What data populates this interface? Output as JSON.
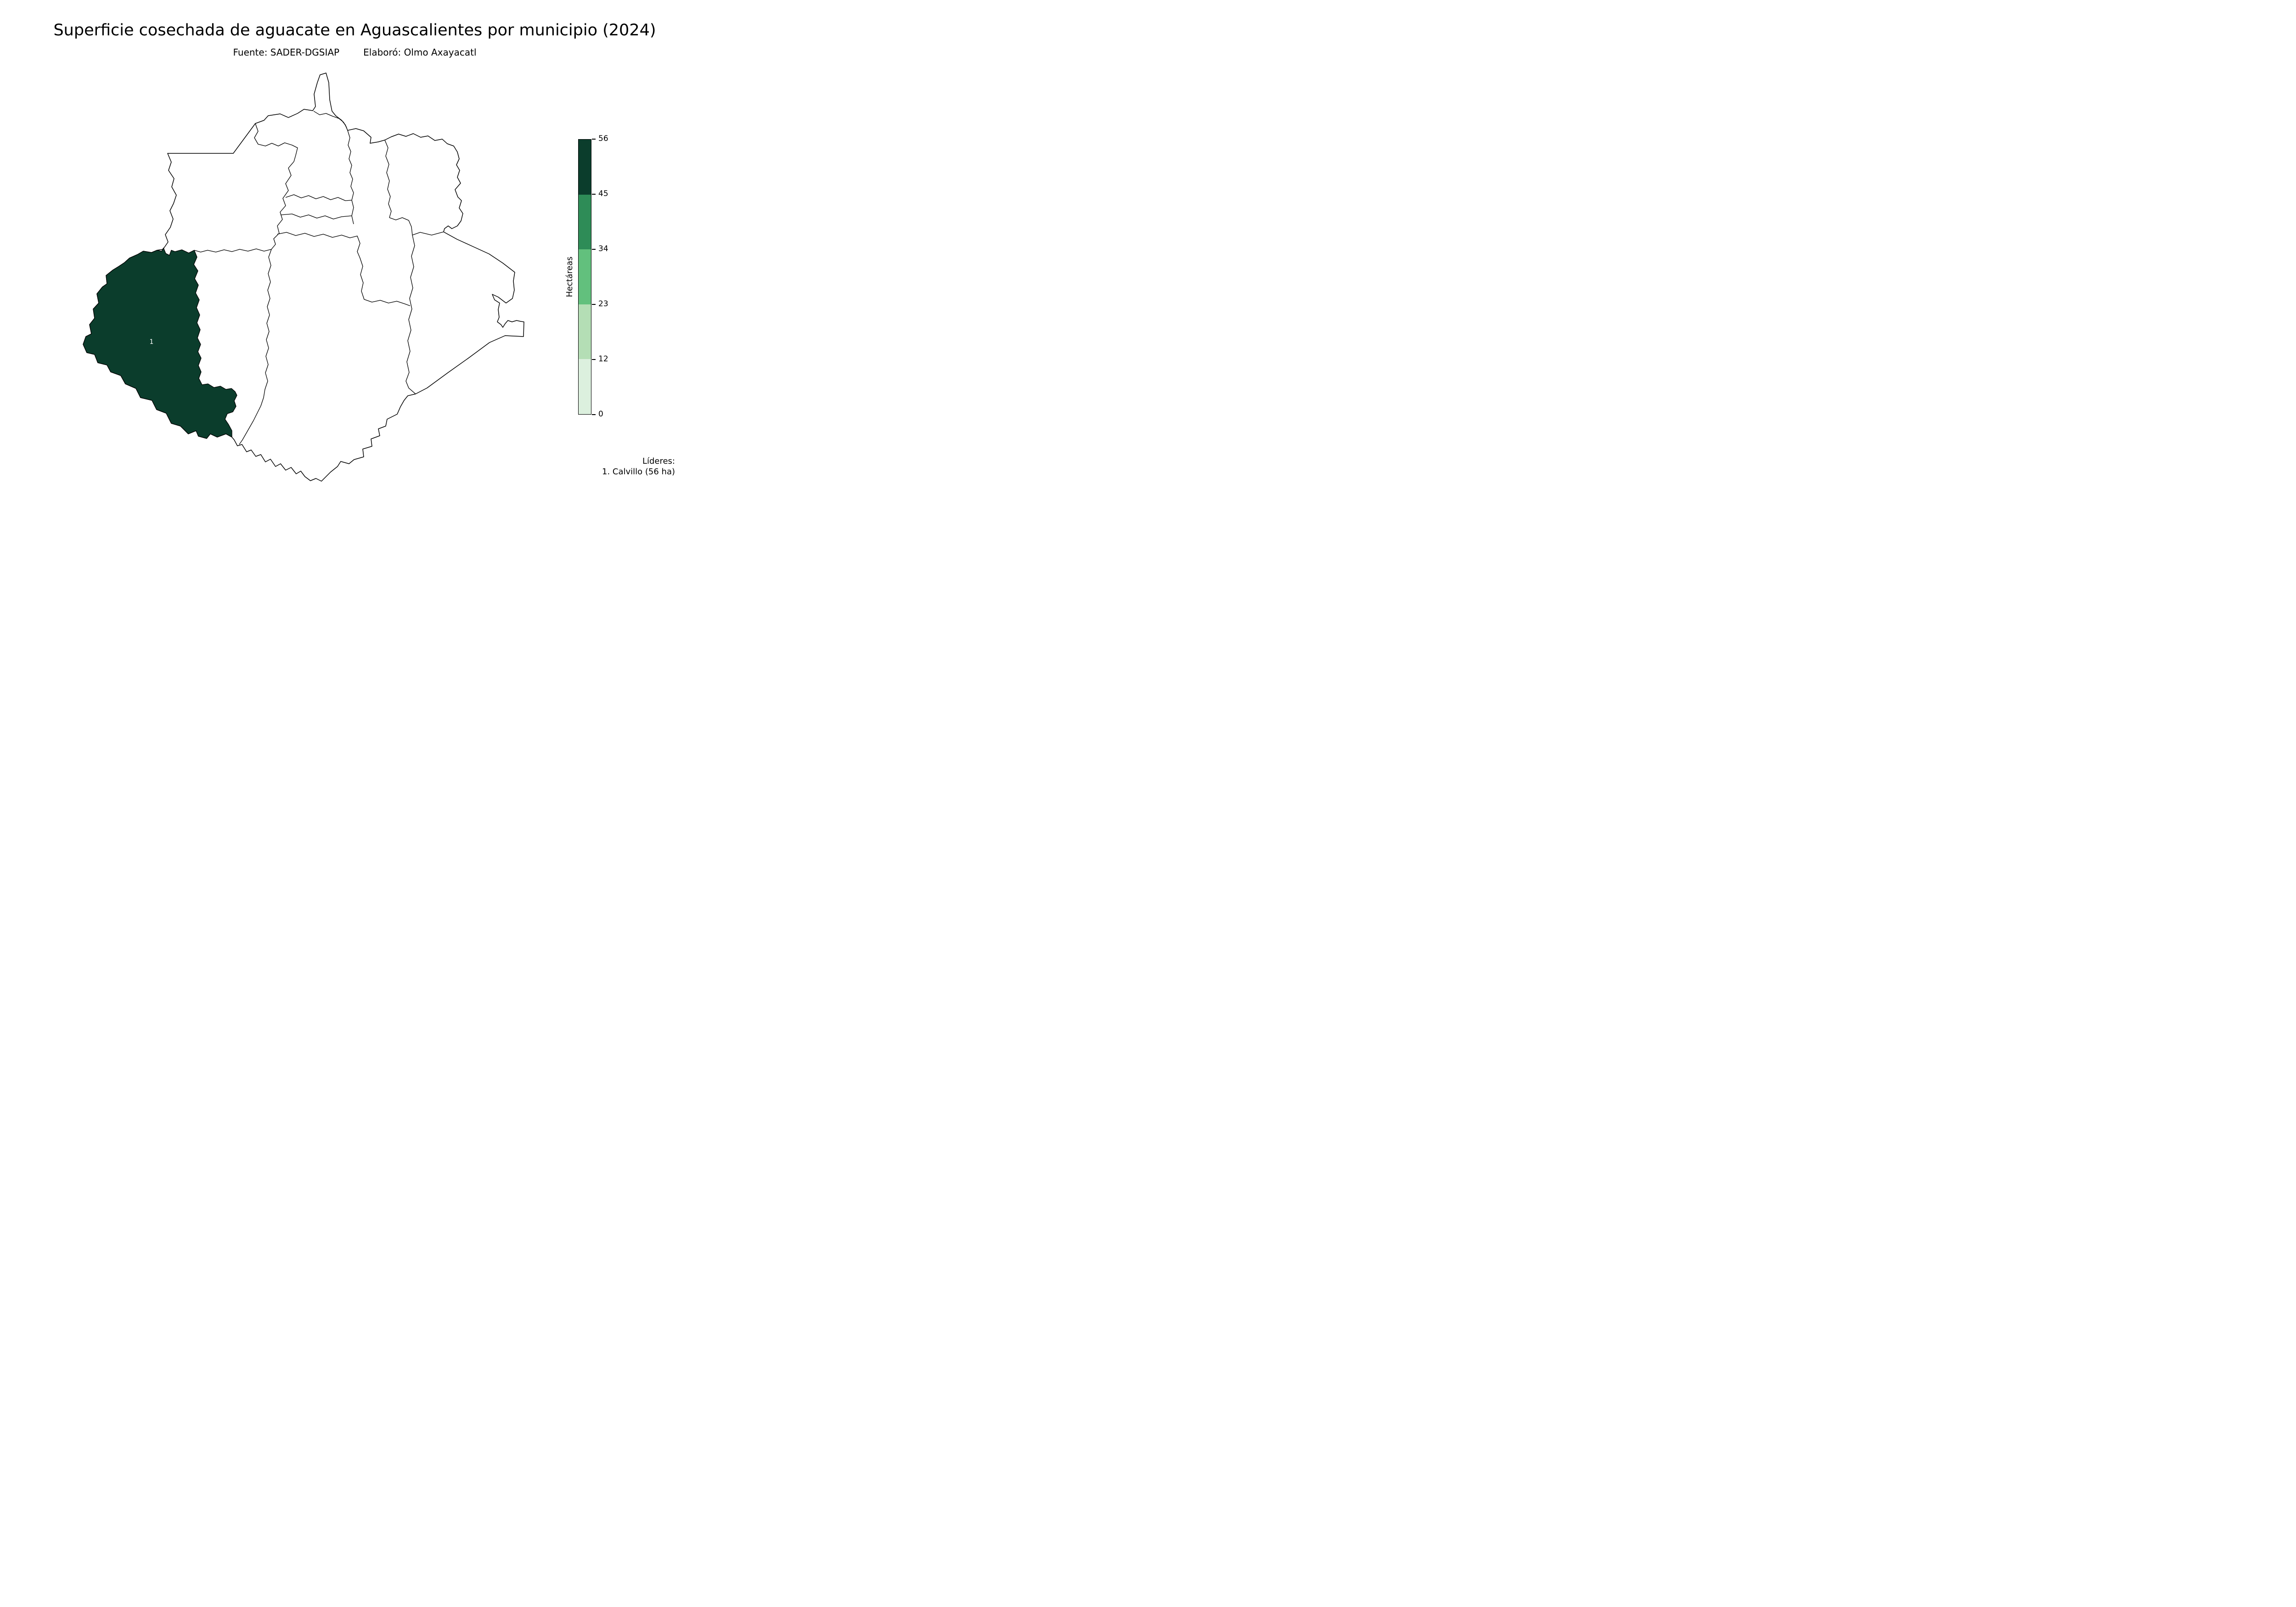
{
  "title": "Superficie cosechada de aguacate en Aguascalientes por municipio (2024)",
  "subtitle": {
    "fuente": "Fuente: SADER-DGSIAP",
    "elaboro": "Elaboró: Olmo Axayacatl"
  },
  "colorbar": {
    "label": "Hectáreas",
    "ticks": [
      56,
      45,
      34,
      23,
      12,
      0
    ],
    "segments": [
      {
        "range": "45–56",
        "color": "#0b3d2c"
      },
      {
        "range": "34–45",
        "color": "#2e8c57"
      },
      {
        "range": "23–34",
        "color": "#62c07d"
      },
      {
        "range": "12–23",
        "color": "#b4deb5"
      },
      {
        "range": "0–12",
        "color": "#dcf0de"
      }
    ]
  },
  "map": {
    "calvillo_label": "1",
    "calvillo_fill": "#0b3d2c",
    "calvillo_label_color": "#ffffff",
    "outline_color": "#000000",
    "background_fill": "#ffffff"
  },
  "leaders": {
    "heading": "Líderes:",
    "items": [
      "1. Calvillo (56 ha)"
    ]
  },
  "chart_data": {
    "type": "choropleth",
    "title": "Superficie cosechada de aguacate en Aguascalientes por municipio (2024)",
    "source": "SADER-DGSIAP",
    "author": "Olmo Axayacatl",
    "year": 2024,
    "unit": "ha",
    "legend_label": "Hectáreas",
    "legend_position": "right",
    "scale": {
      "min": 0,
      "max": 56,
      "breaks": [
        0,
        12,
        23,
        34,
        45,
        56
      ],
      "colors": [
        "#dcf0de",
        "#b4deb5",
        "#62c07d",
        "#2e8c57",
        "#0b3d2c"
      ]
    },
    "regions": [
      {
        "name": "Calvillo",
        "rank": 1,
        "value_ha": 56,
        "labeled": true
      }
    ]
  }
}
